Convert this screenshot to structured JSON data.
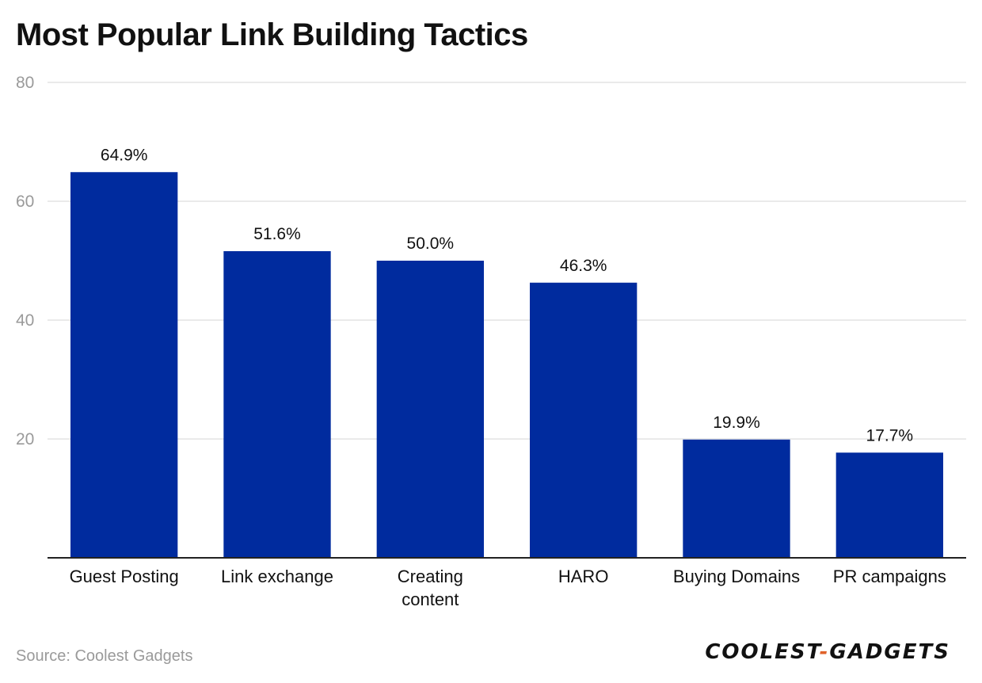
{
  "title": "Most Popular Link Building Tactics",
  "source": "Source: Coolest Gadgets",
  "logo": {
    "left": "COOLEST",
    "dash": "-",
    "right": "GADGETS"
  },
  "colors": {
    "bar": "#002B9E",
    "grid": "#e4e4e4",
    "axis": "#222222",
    "tick": "#9a9a9a",
    "label": "#111111"
  },
  "chart_data": {
    "type": "bar",
    "categories": [
      "Guest Posting",
      "Link exchange",
      "Creating content",
      "HARO",
      "Buying Domains",
      "PR campaigns"
    ],
    "category_lines": [
      [
        "Guest Posting"
      ],
      [
        "Link exchange"
      ],
      [
        "Creating",
        "content"
      ],
      [
        "HARO"
      ],
      [
        "Buying Domains"
      ],
      [
        "PR campaigns"
      ]
    ],
    "values": [
      64.9,
      51.6,
      50.0,
      46.3,
      19.9,
      17.7
    ],
    "data_labels": [
      "64.9%",
      "51.6%",
      "50.0%",
      "46.3%",
      "19.9%",
      "17.7%"
    ],
    "ylim": [
      0,
      80
    ],
    "yticks": [
      20,
      40,
      60,
      80
    ],
    "grid": true,
    "legend": "none"
  }
}
